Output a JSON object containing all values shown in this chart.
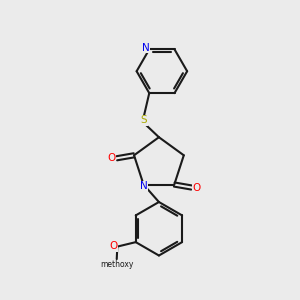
{
  "bg": "#ebebeb",
  "bc": "#1a1a1a",
  "nc": "#0000ee",
  "oc": "#ff0000",
  "sc": "#aaaa00",
  "lw": 1.5,
  "figsize": [
    3.0,
    3.0
  ],
  "dpi": 100,
  "xlim": [
    0,
    10
  ],
  "ylim": [
    0,
    10
  ]
}
